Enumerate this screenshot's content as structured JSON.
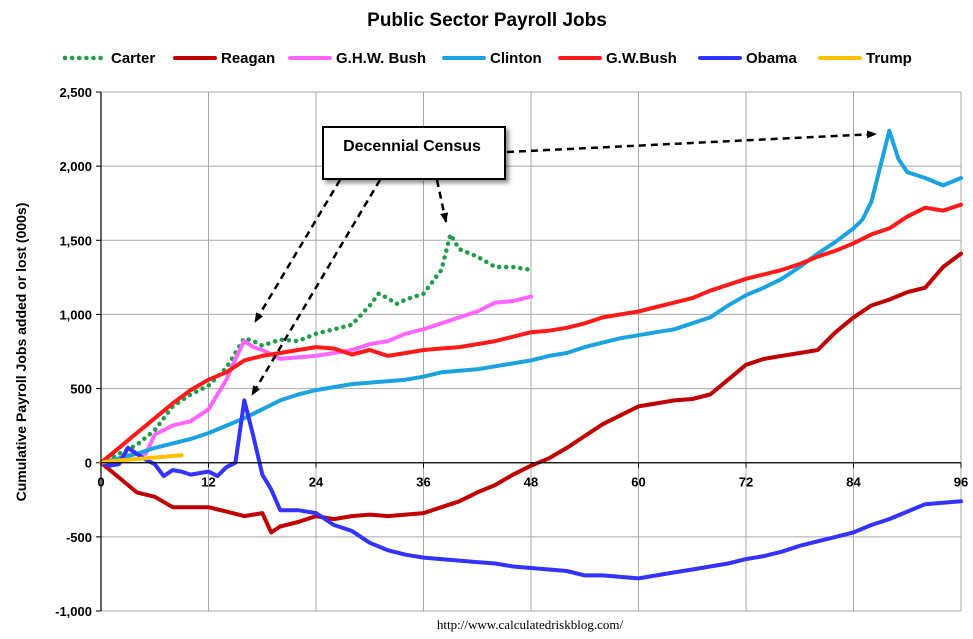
{
  "chart_data": {
    "type": "line",
    "title": "Public Sector Payroll Jobs",
    "ylabel": "Cumulative Payroll Jobs added or lost (000s)",
    "xlabel": "",
    "xlim": [
      0,
      96
    ],
    "ylim": [
      -1000,
      2500
    ],
    "x_ticks": [
      0,
      12,
      24,
      36,
      48,
      60,
      72,
      84,
      96
    ],
    "y_ticks": [
      -1000,
      -500,
      0,
      500,
      1000,
      1500,
      2000,
      2500
    ],
    "y_tick_labels": [
      "-1,000",
      "-500",
      "0",
      "500",
      "1,000",
      "1,500",
      "2,000",
      "2,500"
    ],
    "grid": true,
    "legend_position": "top",
    "source": "http://www.calculatedriskblog.com/",
    "annotation": {
      "text": "Decennial Census"
    },
    "series": [
      {
        "name": "Carter",
        "color": "#1f9e4a",
        "dashed": true,
        "x": [
          0,
          2,
          4,
          6,
          8,
          10,
          12,
          14,
          16,
          17,
          18,
          20,
          22,
          24,
          26,
          28,
          30,
          31,
          32,
          33,
          34,
          36,
          38,
          39,
          40,
          42,
          44,
          46,
          48
        ],
        "y": [
          0,
          60,
          120,
          220,
          380,
          460,
          520,
          640,
          840,
          820,
          790,
          830,
          820,
          870,
          900,
          930,
          1060,
          1140,
          1110,
          1070,
          1100,
          1140,
          1300,
          1540,
          1440,
          1390,
          1320,
          1320,
          1300
        ]
      },
      {
        "name": "Reagan",
        "color": "#c00000",
        "x": [
          0,
          2,
          4,
          6,
          8,
          10,
          12,
          14,
          16,
          18,
          19,
          20,
          22,
          24,
          26,
          28,
          30,
          32,
          34,
          36,
          38,
          40,
          42,
          44,
          46,
          48,
          50,
          52,
          54,
          56,
          58,
          60,
          62,
          64,
          66,
          68,
          70,
          72,
          74,
          76,
          78,
          80,
          82,
          84,
          86,
          88,
          90,
          92,
          94,
          96
        ],
        "y": [
          0,
          -100,
          -200,
          -230,
          -300,
          -300,
          -300,
          -330,
          -360,
          -340,
          -470,
          -430,
          -400,
          -360,
          -380,
          -360,
          -350,
          -360,
          -350,
          -340,
          -300,
          -260,
          -200,
          -150,
          -80,
          -20,
          30,
          100,
          180,
          260,
          320,
          380,
          400,
          420,
          430,
          460,
          560,
          660,
          700,
          720,
          740,
          760,
          880,
          980,
          1060,
          1100,
          1150,
          1180,
          1320,
          1410
        ]
      },
      {
        "name": "G.H.W. Bush",
        "color": "#ff66ff",
        "x": [
          0,
          1,
          2,
          3,
          4,
          5,
          6,
          8,
          10,
          12,
          14,
          15,
          16,
          17,
          18,
          20,
          22,
          24,
          26,
          28,
          30,
          32,
          34,
          36,
          38,
          40,
          42,
          44,
          46,
          48
        ],
        "y": [
          0,
          -20,
          30,
          50,
          60,
          60,
          190,
          250,
          280,
          360,
          560,
          700,
          820,
          780,
          760,
          700,
          710,
          720,
          740,
          760,
          800,
          820,
          870,
          900,
          940,
          980,
          1020,
          1080,
          1090,
          1120
        ]
      },
      {
        "name": "Clinton",
        "color": "#1aa3e0",
        "x": [
          0,
          2,
          4,
          6,
          8,
          10,
          12,
          14,
          16,
          18,
          20,
          22,
          24,
          26,
          28,
          30,
          32,
          34,
          36,
          38,
          40,
          42,
          44,
          46,
          48,
          50,
          52,
          54,
          56,
          58,
          60,
          62,
          64,
          66,
          68,
          70,
          72,
          74,
          76,
          78,
          80,
          82,
          84,
          85,
          86,
          87,
          88,
          89,
          90,
          92,
          94,
          96
        ],
        "y": [
          0,
          30,
          60,
          100,
          130,
          160,
          200,
          250,
          300,
          360,
          420,
          460,
          490,
          510,
          530,
          540,
          550,
          560,
          580,
          610,
          620,
          630,
          650,
          670,
          690,
          720,
          740,
          780,
          810,
          840,
          860,
          880,
          900,
          940,
          980,
          1060,
          1130,
          1180,
          1240,
          1320,
          1410,
          1490,
          1580,
          1640,
          1760,
          2000,
          2240,
          2050,
          1960,
          1920,
          1870,
          1920
        ]
      },
      {
        "name": "G.W.Bush",
        "color": "#ff1a1a",
        "x": [
          0,
          2,
          4,
          6,
          8,
          10,
          12,
          14,
          16,
          18,
          20,
          22,
          24,
          26,
          28,
          30,
          32,
          34,
          36,
          38,
          40,
          42,
          44,
          46,
          48,
          50,
          52,
          54,
          56,
          58,
          60,
          62,
          64,
          66,
          68,
          70,
          72,
          74,
          76,
          78,
          80,
          82,
          84,
          86,
          88,
          90,
          92,
          94,
          96
        ],
        "y": [
          0,
          100,
          200,
          300,
          400,
          490,
          560,
          610,
          690,
          720,
          740,
          760,
          780,
          770,
          730,
          760,
          720,
          740,
          760,
          770,
          780,
          800,
          820,
          850,
          880,
          890,
          910,
          940,
          980,
          1000,
          1020,
          1050,
          1080,
          1110,
          1160,
          1200,
          1240,
          1270,
          1300,
          1340,
          1390,
          1430,
          1480,
          1540,
          1580,
          1660,
          1720,
          1700,
          1740
        ]
      },
      {
        "name": "Obama",
        "color": "#3333ff",
        "x": [
          0,
          1,
          2,
          3,
          4,
          5,
          6,
          7,
          8,
          9,
          10,
          11,
          12,
          13,
          14,
          15,
          16,
          17,
          18,
          19,
          20,
          22,
          24,
          26,
          28,
          30,
          32,
          34,
          36,
          38,
          40,
          42,
          44,
          46,
          48,
          50,
          52,
          54,
          56,
          58,
          60,
          62,
          64,
          66,
          68,
          70,
          72,
          74,
          76,
          78,
          80,
          82,
          84,
          86,
          88,
          90,
          92,
          94,
          96
        ],
        "y": [
          0,
          -20,
          -10,
          100,
          60,
          20,
          -10,
          -90,
          -50,
          -60,
          -80,
          -70,
          -60,
          -90,
          -30,
          0,
          420,
          180,
          -80,
          -180,
          -320,
          -320,
          -340,
          -420,
          -460,
          -540,
          -590,
          -620,
          -640,
          -650,
          -660,
          -670,
          -680,
          -700,
          -710,
          -720,
          -730,
          -760,
          -760,
          -770,
          -780,
          -760,
          -740,
          -720,
          -700,
          -680,
          -650,
          -630,
          -600,
          -560,
          -530,
          -500,
          -470,
          -420,
          -380,
          -330,
          -280,
          -270,
          -260
        ]
      },
      {
        "name": "Trump",
        "color": "#ffc000",
        "x": [
          0,
          1,
          2,
          3,
          4,
          5,
          6,
          7,
          8,
          9
        ],
        "y": [
          0,
          10,
          15,
          20,
          25,
          30,
          35,
          40,
          45,
          50
        ]
      }
    ]
  }
}
